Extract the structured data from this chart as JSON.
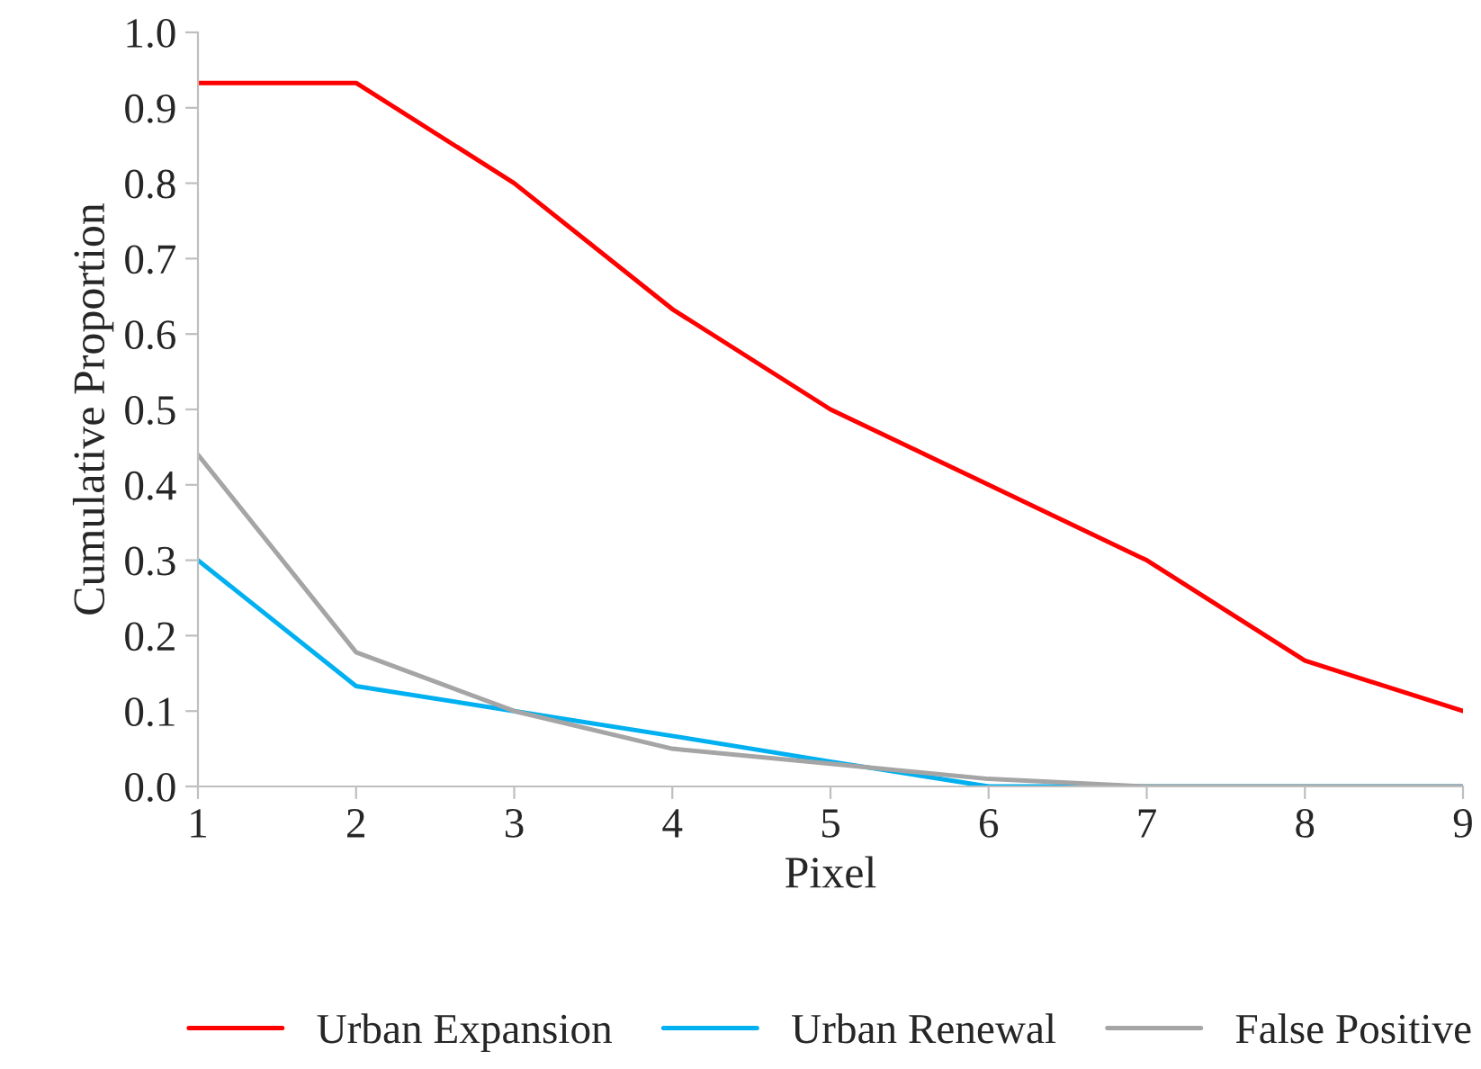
{
  "chart_data": {
    "type": "line",
    "xlabel": "Pixel",
    "ylabel": "Cumulative Proportion",
    "x": [
      1,
      2,
      3,
      4,
      5,
      6,
      7,
      8,
      9
    ],
    "series": [
      {
        "name": "Urban Expansion",
        "color": "#ff0000",
        "values": [
          0.933,
          0.933,
          0.8,
          0.633,
          0.5,
          0.4,
          0.3,
          0.167,
          0.1
        ]
      },
      {
        "name": "Urban Renewal",
        "color": "#00b0f0",
        "values": [
          0.3,
          0.133,
          0.1,
          0.067,
          0.033,
          0.0,
          0.0,
          0.0,
          0.0
        ]
      },
      {
        "name": "False Positive",
        "color": "#a5a5a5",
        "values": [
          0.44,
          0.178,
          0.1,
          0.05,
          0.03,
          0.01,
          0.0,
          0.0,
          0.0
        ]
      }
    ],
    "xlim": [
      1,
      9
    ],
    "xticks": [
      1,
      2,
      3,
      4,
      5,
      6,
      7,
      8,
      9
    ],
    "ylim": [
      0,
      1
    ],
    "yticks": [
      {
        "value": 0,
        "label": "0.0"
      },
      {
        "value": 0.1,
        "label": "0.1"
      },
      {
        "value": 0.2,
        "label": "0.2"
      },
      {
        "value": 0.3,
        "label": "0.3"
      },
      {
        "value": 0.4,
        "label": "0.4"
      },
      {
        "value": 0.5,
        "label": "0.5"
      },
      {
        "value": 0.6,
        "label": "0.6"
      },
      {
        "value": 0.7,
        "label": "0.7"
      },
      {
        "value": 0.8,
        "label": "0.8"
      },
      {
        "value": 0.9,
        "label": "0.9"
      },
      {
        "value": 1,
        "label": "1.0"
      }
    ],
    "grid": false,
    "legend": "bottom",
    "marker": "none",
    "line_style": "solid"
  }
}
